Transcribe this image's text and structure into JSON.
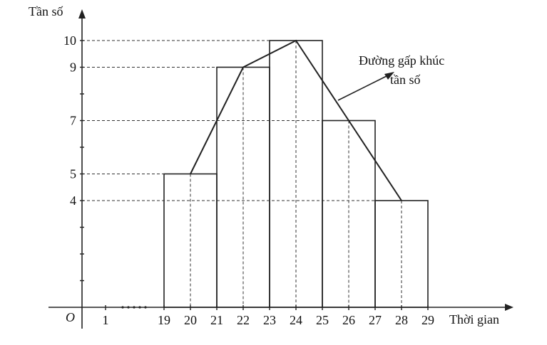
{
  "chart_data": {
    "type": "bar",
    "title": "",
    "xlabel": "Thời gian",
    "ylabel": "Tần số",
    "origin_label": "O",
    "x_ticks": [
      "1",
      "19",
      "20",
      "21",
      "22",
      "23",
      "24",
      "25",
      "26",
      "27",
      "28",
      "29"
    ],
    "y_ticks": [
      "4",
      "5",
      "7",
      "9",
      "10"
    ],
    "bins": [
      {
        "from": 19,
        "to": 21,
        "value": 5
      },
      {
        "from": 21,
        "to": 23,
        "value": 9
      },
      {
        "from": 23,
        "to": 25,
        "value": 10
      },
      {
        "from": 25,
        "to": 27,
        "value": 7
      },
      {
        "from": 27,
        "to": 29,
        "value": 4
      }
    ],
    "polyline": {
      "name": "Đường gấp khúc tần số",
      "points": [
        [
          20,
          5
        ],
        [
          22,
          9
        ],
        [
          24,
          10
        ],
        [
          26,
          7
        ],
        [
          28,
          4
        ]
      ]
    },
    "annotation": {
      "line1": "Đường gấp khúc",
      "line2": "tần số"
    },
    "ylim": [
      0,
      10
    ],
    "xlim": [
      19,
      29
    ],
    "grid": false
  }
}
